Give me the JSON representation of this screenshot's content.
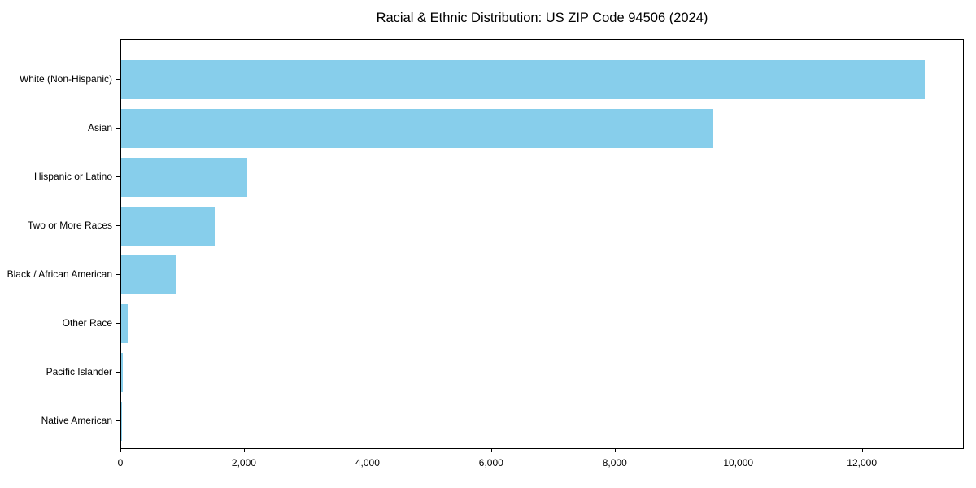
{
  "chart_data": {
    "type": "bar",
    "orientation": "horizontal",
    "title": "Racial & Ethnic Distribution: US ZIP Code 94506 (2024)",
    "categories": [
      "White (Non-Hispanic)",
      "Asian",
      "Hispanic or Latino",
      "Two or More Races",
      "Black / African American",
      "Other Race",
      "Pacific Islander",
      "Native American"
    ],
    "values": [
      13000,
      9580,
      2040,
      1520,
      880,
      100,
      20,
      5
    ],
    "xlabel": "",
    "ylabel": "",
    "xlim": [
      0,
      13650
    ],
    "x_ticks": [
      0,
      2000,
      4000,
      6000,
      8000,
      10000,
      12000
    ],
    "x_tick_labels": [
      "0",
      "2,000",
      "4,000",
      "6,000",
      "8,000",
      "10,000",
      "12,000"
    ],
    "bar_color": "#87CEEB",
    "spine_color": "#000000",
    "text_color": "#000000",
    "background": "#FFFFFF",
    "grid": false,
    "legend": null
  }
}
